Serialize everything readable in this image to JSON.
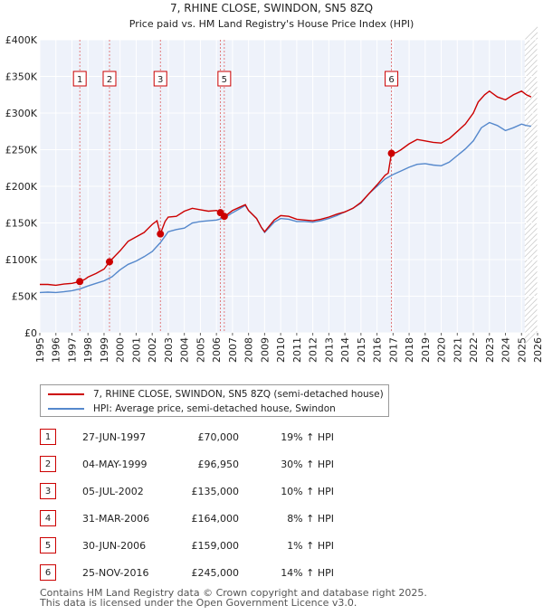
{
  "chart_data": {
    "type": "line",
    "title": "7, RHINE CLOSE, SWINDON, SN5 8ZQ",
    "subtitle": "Price paid vs. HM Land Registry's House Price Index (HPI)",
    "xlabel": "",
    "ylabel": "",
    "xlim": [
      1995,
      2026
    ],
    "ylim": [
      0,
      400000
    ],
    "x_ticks": [
      "1995",
      "1996",
      "1997",
      "1998",
      "1999",
      "2000",
      "2001",
      "2002",
      "2003",
      "2004",
      "2005",
      "2006",
      "2007",
      "2008",
      "2009",
      "2010",
      "2011",
      "2012",
      "2013",
      "2014",
      "2015",
      "2016",
      "2017",
      "2018",
      "2019",
      "2020",
      "2021",
      "2022",
      "2023",
      "2024",
      "2025",
      "2026"
    ],
    "y_ticks": [
      {
        "value": 0,
        "label": "£0"
      },
      {
        "value": 50000,
        "label": "£50K"
      },
      {
        "value": 100000,
        "label": "£100K"
      },
      {
        "value": 150000,
        "label": "£150K"
      },
      {
        "value": 200000,
        "label": "£200K"
      },
      {
        "value": 250000,
        "label": "£250K"
      },
      {
        "value": 300000,
        "label": "£300K"
      },
      {
        "value": 350000,
        "label": "£350K"
      },
      {
        "value": 400000,
        "label": "£400K"
      }
    ],
    "grid": true,
    "forecast_from": 2025.2,
    "series": [
      {
        "name": "7, RHINE CLOSE, SWINDON, SN5 8ZQ (semi-detached house)",
        "color": "#cc0000",
        "x": [
          1995.0,
          1995.5,
          1996.0,
          1996.5,
          1997.0,
          1997.49,
          1997.8,
          1998.0,
          1998.5,
          1999.0,
          1999.34,
          1999.6,
          2000.0,
          2000.5,
          2001.0,
          2001.5,
          2002.0,
          2002.3,
          2002.51,
          2002.8,
          2003.0,
          2003.5,
          2004.0,
          2004.5,
          2005.0,
          2005.5,
          2006.0,
          2006.25,
          2006.49,
          2006.7,
          2007.0,
          2007.5,
          2007.8,
          2008.0,
          2008.5,
          2008.8,
          2009.0,
          2009.3,
          2009.6,
          2010.0,
          2010.5,
          2011.0,
          2011.5,
          2012.0,
          2012.5,
          2013.0,
          2013.5,
          2014.0,
          2014.5,
          2015.0,
          2015.5,
          2016.0,
          2016.5,
          2016.7,
          2016.9,
          2017.2,
          2017.5,
          2018.0,
          2018.5,
          2019.0,
          2019.5,
          2020.0,
          2020.5,
          2021.0,
          2021.5,
          2022.0,
          2022.3,
          2022.7,
          2023.0,
          2023.5,
          2024.0,
          2024.5,
          2025.0,
          2025.3,
          2025.6
        ],
        "values": [
          66000,
          66000,
          65000,
          66500,
          67500,
          70000,
          73000,
          76000,
          81000,
          87000,
          96950,
          103000,
          112000,
          125000,
          131000,
          137000,
          148000,
          153000,
          135000,
          152000,
          158000,
          159000,
          166000,
          170000,
          168000,
          166000,
          167000,
          164000,
          159000,
          162000,
          167000,
          172000,
          175000,
          167000,
          156000,
          144000,
          138000,
          146000,
          154000,
          160000,
          159000,
          155000,
          154000,
          153000,
          155000,
          158000,
          162000,
          165000,
          170000,
          178000,
          190000,
          202000,
          215000,
          218000,
          245000,
          246000,
          250000,
          258000,
          264000,
          262000,
          260000,
          259000,
          265000,
          275000,
          285000,
          300000,
          315000,
          325000,
          330000,
          322000,
          318000,
          325000,
          330000,
          325000,
          322000
        ]
      },
      {
        "name": "HPI: Average price, semi-detached house, Swindon",
        "color": "#5588cc",
        "x": [
          1995.0,
          1995.5,
          1996.0,
          1996.5,
          1997.0,
          1997.5,
          1998.0,
          1998.5,
          1999.0,
          1999.5,
          2000.0,
          2000.5,
          2001.0,
          2001.5,
          2002.0,
          2002.5,
          2003.0,
          2003.5,
          2004.0,
          2004.5,
          2005.0,
          2005.5,
          2006.0,
          2006.5,
          2007.0,
          2007.5,
          2007.8,
          2008.0,
          2008.5,
          2008.8,
          2009.0,
          2009.3,
          2009.6,
          2010.0,
          2010.5,
          2011.0,
          2011.5,
          2012.0,
          2012.5,
          2013.0,
          2013.5,
          2014.0,
          2014.5,
          2015.0,
          2015.5,
          2016.0,
          2016.5,
          2017.0,
          2017.5,
          2018.0,
          2018.5,
          2019.0,
          2019.5,
          2020.0,
          2020.5,
          2021.0,
          2021.5,
          2022.0,
          2022.5,
          2023.0,
          2023.5,
          2024.0,
          2024.5,
          2025.0,
          2025.3,
          2025.6
        ],
        "values": [
          55000,
          55500,
          55000,
          56000,
          57500,
          60000,
          64000,
          67500,
          71000,
          76500,
          86000,
          93500,
          98000,
          104000,
          111000,
          123000,
          138000,
          141000,
          143000,
          150000,
          152000,
          153000,
          154000,
          157000,
          164000,
          170000,
          174000,
          167000,
          156000,
          144000,
          137000,
          144000,
          151000,
          156000,
          155000,
          152000,
          152000,
          151000,
          153000,
          156000,
          160000,
          165000,
          170000,
          177000,
          190000,
          200000,
          210000,
          216000,
          221000,
          226000,
          230000,
          231000,
          229000,
          228000,
          233000,
          242000,
          251000,
          262000,
          280000,
          287000,
          283000,
          276000,
          280000,
          285000,
          283000,
          282000
        ]
      }
    ],
    "sales": [
      {
        "num": "1",
        "x": 1997.49,
        "value": 70000
      },
      {
        "num": "2",
        "x": 1999.34,
        "value": 96950
      },
      {
        "num": "3",
        "x": 2002.51,
        "value": 135000
      },
      {
        "num": "4",
        "x": 2006.25,
        "value": 164000
      },
      {
        "num": "5",
        "x": 2006.49,
        "value": 159000
      },
      {
        "num": "6",
        "x": 2016.9,
        "value": 245000
      }
    ],
    "annotation_boxes": [
      "1",
      "2",
      "3",
      "5",
      "6"
    ]
  },
  "legend": [
    {
      "label": "7, RHINE CLOSE, SWINDON, SN5 8ZQ (semi-detached house)",
      "color": "#cc0000"
    },
    {
      "label": "HPI: Average price, semi-detached house, Swindon",
      "color": "#5588cc"
    }
  ],
  "transactions": [
    {
      "num": "1",
      "date": "27-JUN-1997",
      "price": "£70,000",
      "hpi": "19% ↑ HPI"
    },
    {
      "num": "2",
      "date": "04-MAY-1999",
      "price": "£96,950",
      "hpi": "30% ↑ HPI"
    },
    {
      "num": "3",
      "date": "05-JUL-2002",
      "price": "£135,000",
      "hpi": "10% ↑ HPI"
    },
    {
      "num": "4",
      "date": "31-MAR-2006",
      "price": "£164,000",
      "hpi": "8% ↑ HPI"
    },
    {
      "num": "5",
      "date": "30-JUN-2006",
      "price": "£159,000",
      "hpi": "1% ↑ HPI"
    },
    {
      "num": "6",
      "date": "25-NOV-2016",
      "price": "£245,000",
      "hpi": "14% ↑ HPI"
    }
  ],
  "footer": {
    "line1": "Contains HM Land Registry data © Crown copyright and database right 2025.",
    "line2": "This data is licensed under the Open Government Licence v3.0."
  },
  "colors": {
    "price": "#cc0000",
    "hpi": "#5588cc",
    "plot_bg": "#eef2fa",
    "grid": "#ffffff"
  }
}
